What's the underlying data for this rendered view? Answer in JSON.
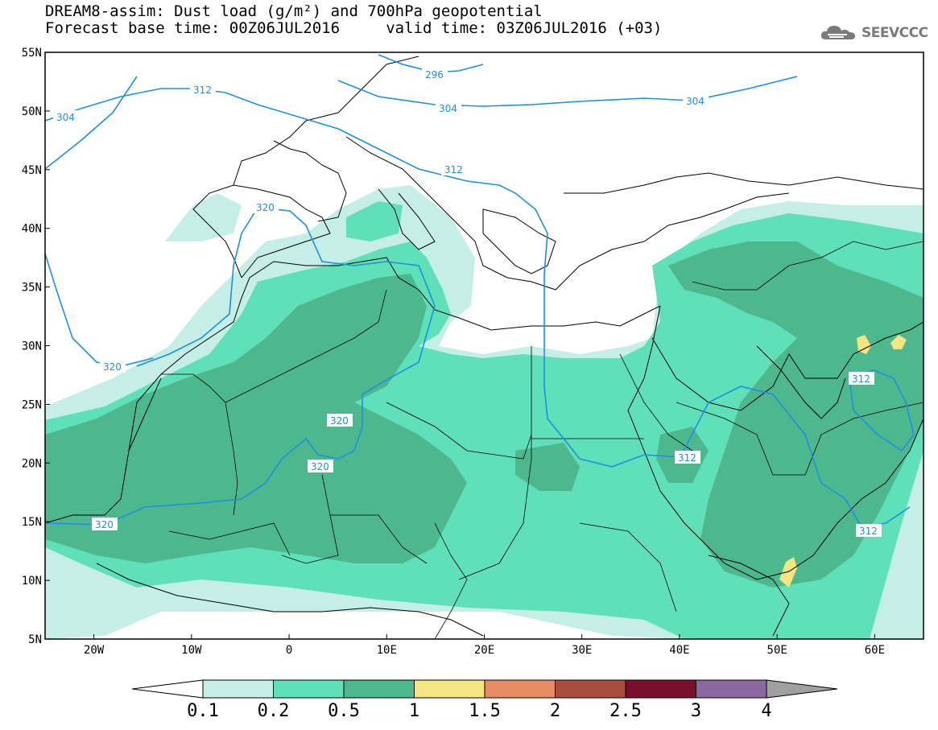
{
  "title": {
    "line1": "DREAM8-assim: Dust load (g/m²) and 700hPa geopotential",
    "line2": "Forecast base time: 00Z06JUL2016     valid time: 03Z06JUL2016 (+03)"
  },
  "logo": {
    "text": "SEEVCCC",
    "icon": "cloud-icon"
  },
  "map": {
    "lon_range": [
      -25,
      65
    ],
    "lat_range": [
      5,
      55
    ],
    "lat_ticks": [
      "5N",
      "10N",
      "15N",
      "20N",
      "25N",
      "30N",
      "35N",
      "40N",
      "45N",
      "50N",
      "55N"
    ],
    "lon_ticks": [
      "20W",
      "10W",
      "0",
      "10E",
      "20E",
      "30E",
      "40E",
      "50E",
      "60E"
    ],
    "contour_labels": [
      "296",
      "304",
      "304",
      "304",
      "312",
      "312",
      "312",
      "312",
      "312",
      "320",
      "320",
      "320",
      "320",
      "320"
    ],
    "contour_color": "#1e90e0"
  },
  "colorbar": {
    "labels": [
      "0.1",
      "0.2",
      "0.5",
      "1",
      "1.5",
      "2",
      "2.5",
      "3",
      "4"
    ],
    "colors": [
      "#ffffff",
      "#c4eee6",
      "#5fe0b8",
      "#4db88e",
      "#f4e482",
      "#e88c66",
      "#a84e40",
      "#7a0f2d",
      "#8c68a0",
      "#a0a0a0"
    ]
  }
}
